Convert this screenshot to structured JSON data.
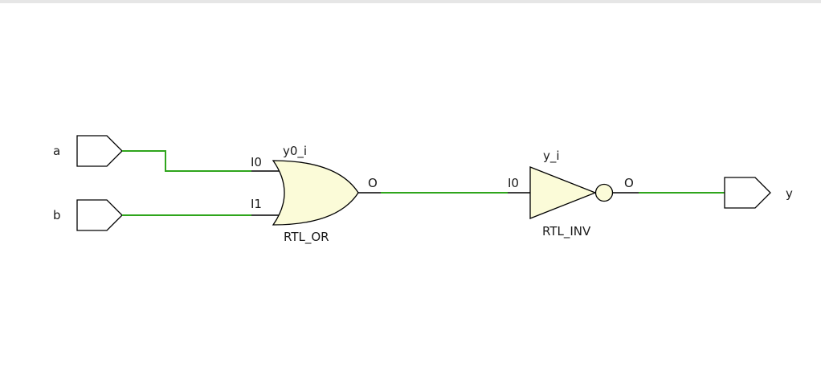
{
  "colors": {
    "wire": "#2fa51c",
    "gate_fill": "#fbfbd8",
    "outline": "#000000",
    "background": "#ffffff"
  },
  "ports": {
    "inputs": [
      {
        "name": "a"
      },
      {
        "name": "b"
      }
    ],
    "outputs": [
      {
        "name": "y"
      }
    ]
  },
  "cells": {
    "or_gate": {
      "instance": "y0_i",
      "type": "RTL_OR",
      "input_pins": [
        "I0",
        "I1"
      ],
      "output_pin": "O"
    },
    "inverter": {
      "instance": "y_i",
      "type": "RTL_INV",
      "input_pin": "I0",
      "output_pin": "O"
    }
  }
}
